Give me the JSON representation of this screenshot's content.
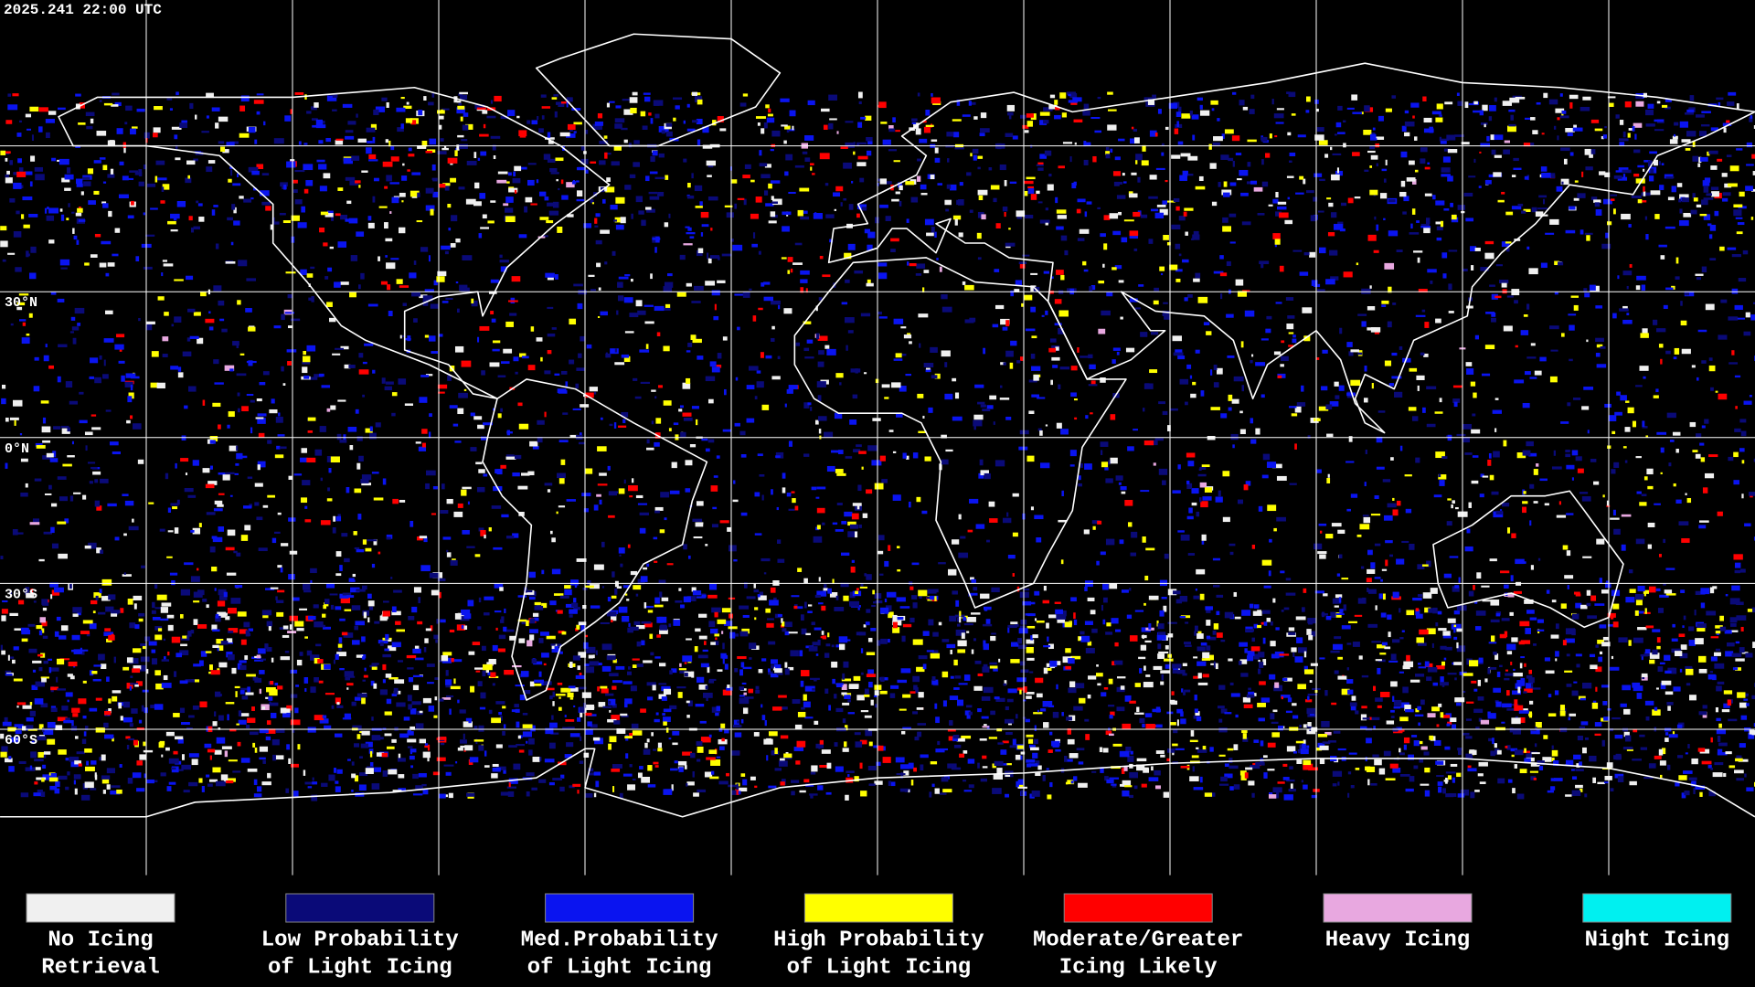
{
  "header": {
    "timestamp": "2025.241 22:00 UTC"
  },
  "map": {
    "latitude_labels": [
      "30°N",
      "0°N",
      "30°S",
      "60°S"
    ]
  },
  "legend": [
    {
      "lines": [
        "No Icing",
        "Retrieval"
      ],
      "color": "#f0f0f0"
    },
    {
      "lines": [
        "Low Probability",
        "of Light Icing"
      ],
      "color": "#0a0a78"
    },
    {
      "lines": [
        "Med.Probability",
        "of Light Icing"
      ],
      "color": "#0a14f0"
    },
    {
      "lines": [
        "High Probability",
        "of Light Icing"
      ],
      "color": "#ffff00"
    },
    {
      "lines": [
        "Moderate/Greater",
        "Icing Likely"
      ],
      "color": "#ff0000"
    },
    {
      "lines": [
        "Heavy Icing"
      ],
      "color": "#e8a8e0"
    },
    {
      "lines": [
        "Night Icing"
      ],
      "color": "#00f0f0"
    }
  ]
}
